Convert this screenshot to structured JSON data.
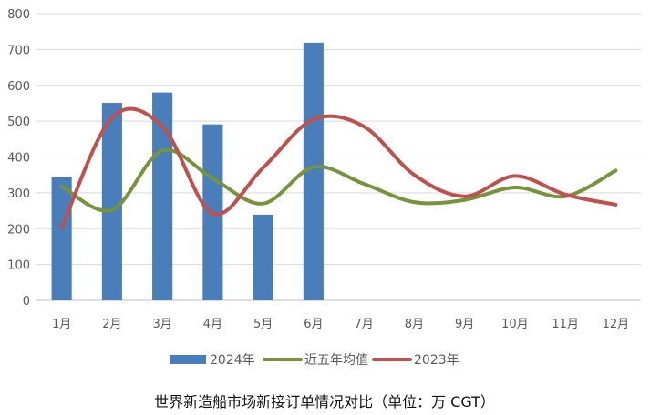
{
  "chart_data": {
    "type": "bar",
    "title": "世界新造船市场新接订单情况对比（单位：万 CGT）",
    "categories": [
      "1月",
      "2月",
      "3月",
      "4月",
      "5月",
      "6月",
      "7月",
      "8月",
      "9月",
      "10月",
      "11月",
      "12月"
    ],
    "ylim": [
      0,
      800
    ],
    "yticks": [
      0,
      100,
      200,
      300,
      400,
      500,
      600,
      700,
      800
    ],
    "grid": true,
    "legend_position": "bottom",
    "series": [
      {
        "name": "2024年",
        "kind": "bar",
        "color": "#4a7ebb",
        "values": [
          345,
          551,
          580,
          491,
          239,
          719,
          null,
          null,
          null,
          null,
          null,
          null
        ]
      },
      {
        "name": "近五年均值",
        "kind": "line",
        "color": "#77933c",
        "values": [
          318,
          252,
          418,
          340,
          270,
          372,
          325,
          274,
          280,
          315,
          290,
          362
        ]
      },
      {
        "name": "2023年",
        "kind": "line",
        "color": "#c0504d",
        "values": [
          202,
          510,
          485,
          242,
          370,
          505,
          485,
          350,
          290,
          347,
          295,
          267
        ]
      }
    ]
  }
}
